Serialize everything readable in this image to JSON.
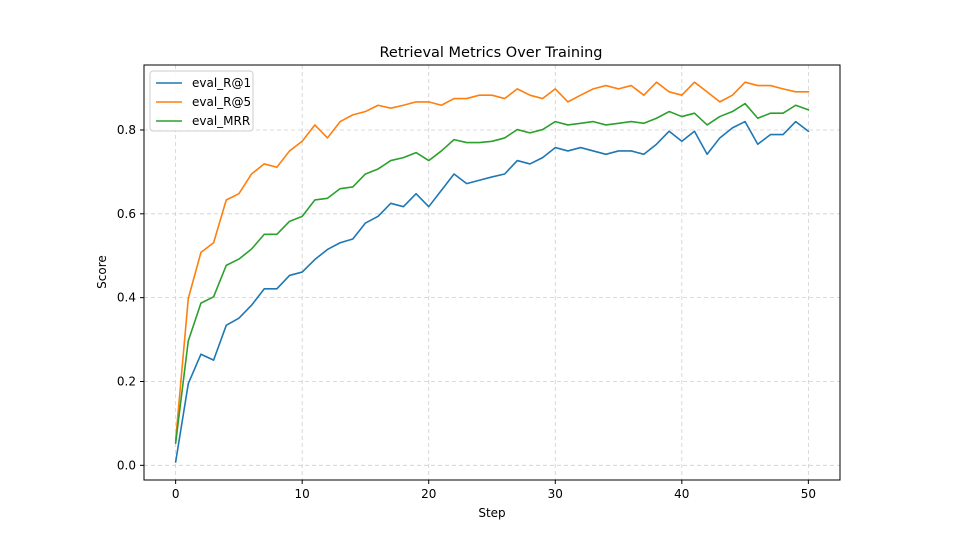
{
  "chart_data": {
    "type": "line",
    "title": "Retrieval Metrics Over Training",
    "xlabel": "Step",
    "ylabel": "Score",
    "xlim": [
      -2.5,
      52.5
    ],
    "ylim": [
      -0.035,
      0.955
    ],
    "xticks": [
      0,
      10,
      20,
      30,
      40,
      50
    ],
    "yticks": [
      0.0,
      0.2,
      0.4,
      0.6,
      0.8
    ],
    "ytick_labels": [
      "0.0",
      "0.2",
      "0.4",
      "0.6",
      "0.8"
    ],
    "grid": true,
    "legend_position": "top-left",
    "x": [
      0,
      1,
      2,
      3,
      4,
      5,
      6,
      7,
      8,
      9,
      10,
      11,
      12,
      13,
      14,
      15,
      16,
      17,
      18,
      19,
      20,
      21,
      22,
      23,
      24,
      25,
      26,
      27,
      28,
      29,
      30,
      31,
      32,
      33,
      34,
      35,
      36,
      37,
      38,
      39,
      40,
      41,
      42,
      43,
      44,
      45,
      46,
      47,
      48,
      49,
      50
    ],
    "series": [
      {
        "name": "eval_R@1",
        "color": "#1f77b4",
        "values": [
          0.008,
          0.195,
          0.265,
          0.251,
          0.334,
          0.351,
          0.382,
          0.421,
          0.421,
          0.453,
          0.461,
          0.491,
          0.515,
          0.531,
          0.54,
          0.578,
          0.594,
          0.625,
          0.617,
          0.648,
          0.617,
          0.656,
          0.695,
          0.672,
          0.68,
          0.688,
          0.695,
          0.727,
          0.719,
          0.734,
          0.758,
          0.75,
          0.758,
          0.75,
          0.742,
          0.75,
          0.75,
          0.742,
          0.766,
          0.797,
          0.773,
          0.797,
          0.742,
          0.781,
          0.805,
          0.82,
          0.766,
          0.789,
          0.789,
          0.82,
          0.797
        ]
      },
      {
        "name": "eval_R@5",
        "color": "#ff7f0e",
        "values": [
          0.06,
          0.398,
          0.508,
          0.531,
          0.633,
          0.648,
          0.695,
          0.719,
          0.711,
          0.75,
          0.773,
          0.812,
          0.781,
          0.82,
          0.836,
          0.844,
          0.859,
          0.852,
          0.859,
          0.867,
          0.867,
          0.859,
          0.875,
          0.875,
          0.883,
          0.883,
          0.875,
          0.898,
          0.883,
          0.875,
          0.898,
          0.867,
          0.883,
          0.898,
          0.906,
          0.898,
          0.906,
          0.883,
          0.914,
          0.891,
          0.883,
          0.914,
          0.891,
          0.867,
          0.883,
          0.914,
          0.906,
          0.906,
          0.898,
          0.891,
          0.891
        ]
      },
      {
        "name": "eval_MRR",
        "color": "#2ca02c",
        "values": [
          0.053,
          0.297,
          0.387,
          0.402,
          0.477,
          0.492,
          0.516,
          0.551,
          0.551,
          0.582,
          0.594,
          0.633,
          0.637,
          0.66,
          0.664,
          0.695,
          0.707,
          0.727,
          0.734,
          0.746,
          0.727,
          0.75,
          0.777,
          0.77,
          0.77,
          0.773,
          0.781,
          0.801,
          0.793,
          0.801,
          0.82,
          0.812,
          0.816,
          0.82,
          0.812,
          0.816,
          0.82,
          0.816,
          0.828,
          0.844,
          0.832,
          0.84,
          0.812,
          0.832,
          0.844,
          0.863,
          0.828,
          0.84,
          0.84,
          0.859,
          0.848
        ]
      }
    ]
  }
}
